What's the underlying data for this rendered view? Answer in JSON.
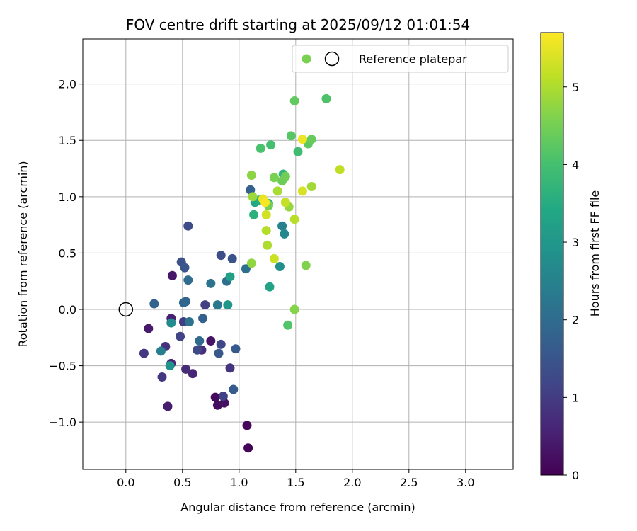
{
  "chart_data": {
    "type": "scatter",
    "title": "FOV centre drift starting at 2025/09/12 01:01:54",
    "xlabel": "Angular distance from reference (arcmin)",
    "ylabel": "Rotation from reference (arcmin)",
    "xlim": [
      -0.38,
      3.42
    ],
    "ylim": [
      -1.42,
      2.4
    ],
    "xticks": [
      "0.0",
      "0.5",
      "1.0",
      "1.5",
      "2.0",
      "2.5",
      "3.0"
    ],
    "xtick_values": [
      0.0,
      0.5,
      1.0,
      1.5,
      2.0,
      2.5,
      3.0
    ],
    "yticks": [
      "−1.0",
      "−0.5",
      "0.0",
      "0.5",
      "1.0",
      "1.5",
      "2.0"
    ],
    "ytick_values": [
      -1.0,
      -0.5,
      0.0,
      0.5,
      1.0,
      1.5,
      2.0
    ],
    "grid": true,
    "legend": {
      "placement": "top-right",
      "entries": [
        {
          "label": "",
          "marker": "dot",
          "color": "#7ad151"
        },
        {
          "label": "Reference platepar",
          "marker": "open-circle",
          "color": "#000000"
        }
      ]
    },
    "colorbar": {
      "label": "Hours from first FF file",
      "range": [
        0,
        5.7
      ],
      "ticks": [
        "0",
        "1",
        "2",
        "3",
        "4",
        "5"
      ],
      "tick_values": [
        0,
        1,
        2,
        3,
        4,
        5
      ],
      "colormap": "viridis"
    },
    "reference_point": {
      "x": 0.0,
      "y": 0.0
    },
    "points": [
      {
        "x": 1.08,
        "y": -1.23,
        "h": 0.05
      },
      {
        "x": 1.07,
        "y": -1.03,
        "h": 0.1
      },
      {
        "x": 0.79,
        "y": -0.78,
        "h": 0.15
      },
      {
        "x": 0.81,
        "y": -0.85,
        "h": 0.2
      },
      {
        "x": 0.87,
        "y": -0.83,
        "h": 0.25
      },
      {
        "x": 0.75,
        "y": -0.28,
        "h": 0.3
      },
      {
        "x": 0.41,
        "y": 0.3,
        "h": 0.35
      },
      {
        "x": 0.2,
        "y": -0.17,
        "h": 0.4
      },
      {
        "x": 0.37,
        "y": -0.86,
        "h": 0.45
      },
      {
        "x": 0.4,
        "y": -0.08,
        "h": 0.5
      },
      {
        "x": 0.4,
        "y": -0.48,
        "h": 0.55
      },
      {
        "x": 0.59,
        "y": -0.57,
        "h": 0.6
      },
      {
        "x": 0.53,
        "y": -0.53,
        "h": 0.7
      },
      {
        "x": 0.67,
        "y": -0.36,
        "h": 0.75
      },
      {
        "x": 0.35,
        "y": -0.33,
        "h": 0.8
      },
      {
        "x": 0.92,
        "y": -0.52,
        "h": 0.85
      },
      {
        "x": 0.32,
        "y": -0.6,
        "h": 0.9
      },
      {
        "x": 0.16,
        "y": -0.39,
        "h": 0.95
      },
      {
        "x": 0.51,
        "y": -0.11,
        "h": 1.0
      },
      {
        "x": 0.7,
        "y": 0.04,
        "h": 1.05
      },
      {
        "x": 0.86,
        "y": -0.77,
        "h": 1.1
      },
      {
        "x": 0.48,
        "y": -0.24,
        "h": 1.15
      },
      {
        "x": 0.84,
        "y": -0.31,
        "h": 1.2
      },
      {
        "x": 0.63,
        "y": -0.36,
        "h": 1.25
      },
      {
        "x": 0.55,
        "y": 0.74,
        "h": 1.3
      },
      {
        "x": 0.84,
        "y": 0.48,
        "h": 1.35
      },
      {
        "x": 0.49,
        "y": 0.42,
        "h": 1.4
      },
      {
        "x": 0.94,
        "y": 0.45,
        "h": 1.45
      },
      {
        "x": 0.52,
        "y": 0.37,
        "h": 1.5
      },
      {
        "x": 0.82,
        "y": -0.39,
        "h": 1.55
      },
      {
        "x": 0.97,
        "y": -0.35,
        "h": 1.6
      },
      {
        "x": 0.95,
        "y": -0.71,
        "h": 1.65
      },
      {
        "x": 0.68,
        "y": -0.08,
        "h": 1.7
      },
      {
        "x": 1.1,
        "y": 1.06,
        "h": 1.75
      },
      {
        "x": 0.25,
        "y": 0.05,
        "h": 1.8
      },
      {
        "x": 0.51,
        "y": 0.06,
        "h": 1.85
      },
      {
        "x": 0.53,
        "y": 0.07,
        "h": 1.9
      },
      {
        "x": 0.65,
        "y": -0.28,
        "h": 1.95
      },
      {
        "x": 0.55,
        "y": 0.26,
        "h": 2.0
      },
      {
        "x": 0.89,
        "y": 0.25,
        "h": 2.05
      },
      {
        "x": 1.06,
        "y": 0.36,
        "h": 2.1
      },
      {
        "x": 0.56,
        "y": -0.11,
        "h": 2.15
      },
      {
        "x": 0.75,
        "y": 0.23,
        "h": 2.2
      },
      {
        "x": 0.81,
        "y": 0.04,
        "h": 2.25
      },
      {
        "x": 0.31,
        "y": -0.37,
        "h": 2.4
      },
      {
        "x": 1.38,
        "y": 0.74,
        "h": 2.5
      },
      {
        "x": 1.4,
        "y": 0.67,
        "h": 2.6
      },
      {
        "x": 0.4,
        "y": -0.12,
        "h": 2.7
      },
      {
        "x": 1.36,
        "y": 0.38,
        "h": 2.8
      },
      {
        "x": 0.39,
        "y": -0.5,
        "h": 2.9
      },
      {
        "x": 0.9,
        "y": 0.04,
        "h": 3.0
      },
      {
        "x": 0.92,
        "y": 0.29,
        "h": 3.2
      },
      {
        "x": 1.27,
        "y": 0.2,
        "h": 3.3
      },
      {
        "x": 1.14,
        "y": 0.95,
        "h": 3.4
      },
      {
        "x": 1.18,
        "y": 0.97,
        "h": 3.5
      },
      {
        "x": 1.13,
        "y": 0.84,
        "h": 3.6
      },
      {
        "x": 1.39,
        "y": 1.2,
        "h": 3.7
      },
      {
        "x": 1.26,
        "y": 0.94,
        "h": 3.8
      },
      {
        "x": 1.52,
        "y": 1.4,
        "h": 3.9
      },
      {
        "x": 1.28,
        "y": 1.46,
        "h": 4.0
      },
      {
        "x": 1.19,
        "y": 1.43,
        "h": 4.05
      },
      {
        "x": 1.77,
        "y": 1.87,
        "h": 4.1
      },
      {
        "x": 1.43,
        "y": -0.14,
        "h": 4.15
      },
      {
        "x": 1.46,
        "y": 1.54,
        "h": 4.2
      },
      {
        "x": 1.61,
        "y": 1.47,
        "h": 4.25
      },
      {
        "x": 1.49,
        "y": 1.85,
        "h": 4.3
      },
      {
        "x": 1.64,
        "y": 1.51,
        "h": 4.35
      },
      {
        "x": 1.38,
        "y": 1.14,
        "h": 4.4
      },
      {
        "x": 1.41,
        "y": 1.18,
        "h": 4.45
      },
      {
        "x": 1.26,
        "y": 0.92,
        "h": 4.5
      },
      {
        "x": 1.31,
        "y": 1.17,
        "h": 4.55
      },
      {
        "x": 1.59,
        "y": 0.39,
        "h": 4.6
      },
      {
        "x": 1.49,
        "y": 0.0,
        "h": 4.65
      },
      {
        "x": 1.11,
        "y": 1.19,
        "h": 4.7
      },
      {
        "x": 1.11,
        "y": 0.41,
        "h": 4.75
      },
      {
        "x": 1.44,
        "y": 0.91,
        "h": 4.8
      },
      {
        "x": 1.12,
        "y": 1.0,
        "h": 4.85
      },
      {
        "x": 1.64,
        "y": 1.09,
        "h": 4.9
      },
      {
        "x": 1.34,
        "y": 1.05,
        "h": 4.95
      },
      {
        "x": 1.25,
        "y": 0.57,
        "h": 5.0
      },
      {
        "x": 1.24,
        "y": 0.7,
        "h": 5.05
      },
      {
        "x": 1.49,
        "y": 0.8,
        "h": 5.1
      },
      {
        "x": 1.89,
        "y": 1.24,
        "h": 5.15
      },
      {
        "x": 1.41,
        "y": 0.95,
        "h": 5.2
      },
      {
        "x": 1.31,
        "y": 0.45,
        "h": 5.25
      },
      {
        "x": 1.24,
        "y": 0.84,
        "h": 5.3
      },
      {
        "x": 1.56,
        "y": 1.05,
        "h": 5.35
      },
      {
        "x": 1.21,
        "y": 0.98,
        "h": 5.5
      },
      {
        "x": 1.56,
        "y": 1.51,
        "h": 5.55
      },
      {
        "x": 1.23,
        "y": 0.95,
        "h": 5.65
      }
    ]
  }
}
